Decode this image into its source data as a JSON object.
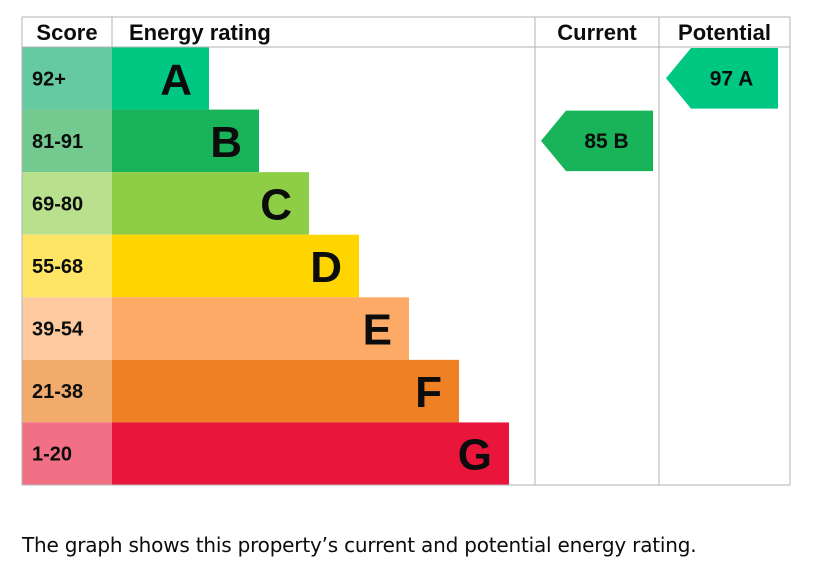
{
  "chart_data": {
    "type": "bar",
    "headers": {
      "score": "Score",
      "rating": "Energy rating",
      "current": "Current",
      "potential": "Potential"
    },
    "bands": [
      {
        "score": "92+",
        "letter": "A",
        "color": "#00c781",
        "score_bg": "#65c9a1"
      },
      {
        "score": "81-91",
        "letter": "B",
        "color": "#19b459",
        "score_bg": "#73c98e"
      },
      {
        "score": "69-80",
        "letter": "C",
        "color": "#8dce46",
        "score_bg": "#b9e08d"
      },
      {
        "score": "55-68",
        "letter": "D",
        "color": "#ffd500",
        "score_bg": "#ffe566"
      },
      {
        "score": "39-54",
        "letter": "E",
        "color": "#fcaa65",
        "score_bg": "#fdca9f"
      },
      {
        "score": "21-38",
        "letter": "F",
        "color": "#ef8023",
        "score_bg": "#f3ab6d"
      },
      {
        "score": "1-20",
        "letter": "G",
        "color": "#e9153b",
        "score_bg": "#f27085"
      }
    ],
    "current": {
      "value": 85,
      "letter": "B",
      "color": "#19b459"
    },
    "potential": {
      "value": 97,
      "letter": "A",
      "color": "#00c781"
    }
  },
  "caption": "The graph shows this property’s current and potential energy rating."
}
